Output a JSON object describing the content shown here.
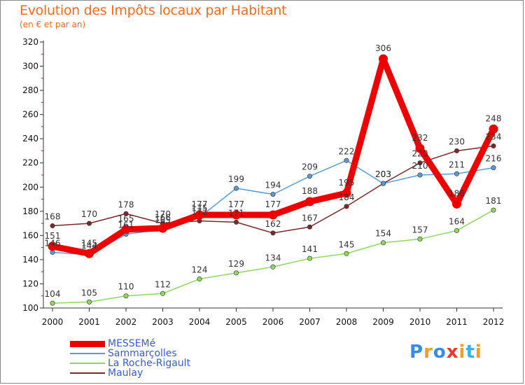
{
  "header": {
    "title": "Evolution des Impôts locaux par Habitant",
    "subtitle": "(en € et par an)"
  },
  "brand": {
    "text": "Proxiti",
    "colors": [
      "#3a8be0",
      "#f0a020",
      "#3a8be0",
      "#e23c2c",
      "#f0a020",
      "#3ab0e0",
      "#f0a020"
    ]
  },
  "chart_data": {
    "type": "line",
    "title": "Evolution des Impôts locaux par Habitant",
    "subtitle": "(en € et par an)",
    "xlabel": "",
    "ylabel": "",
    "ylim": [
      100,
      320
    ],
    "yticks": [
      100,
      120,
      140,
      160,
      180,
      200,
      220,
      240,
      260,
      280,
      300,
      320
    ],
    "grid": false,
    "legend_position": "bottom-left",
    "x": [
      "2000",
      "2001",
      "2002",
      "2003",
      "2004",
      "2005",
      "2006",
      "2007",
      "2008",
      "2009",
      "2010",
      "2011",
      "2012"
    ],
    "series": [
      {
        "name": "MESSEMé",
        "color": "#ee0000",
        "values": [
          151,
          145,
          165,
          166,
          177,
          177,
          177,
          188,
          195,
          306,
          232,
          186,
          248
        ]
      },
      {
        "name": "Sammarçolles",
        "color": "#5b9bd5",
        "values": [
          146,
          144,
          161,
          165,
          175,
          199,
          194,
          209,
          222,
          203,
          210,
          211,
          216
        ]
      },
      {
        "name": "La Roche-Rigault",
        "color": "#8fd860",
        "values": [
          104,
          105,
          110,
          112,
          124,
          129,
          134,
          141,
          145,
          154,
          157,
          164,
          181
        ]
      },
      {
        "name": "Maulay",
        "color": "#7a2a2a",
        "values": [
          168,
          170,
          178,
          170,
          172,
          171,
          162,
          167,
          184,
          203,
          220,
          230,
          234
        ]
      }
    ]
  }
}
